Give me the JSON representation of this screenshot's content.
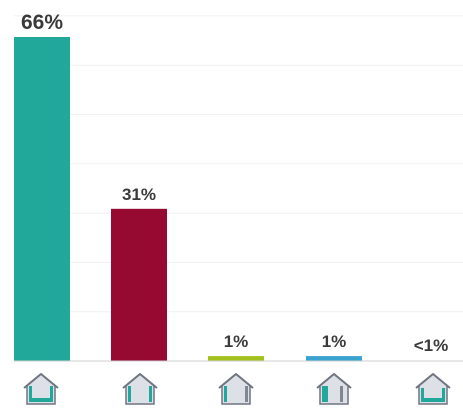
{
  "chart_data": {
    "type": "bar",
    "categories": [
      "",
      "",
      "",
      "",
      ""
    ],
    "values": [
      66,
      31,
      1,
      1,
      0.3
    ],
    "data_labels": [
      "66%",
      "31%",
      "1%",
      "1%",
      "<1%"
    ],
    "bar_colors": [
      "#22a89a",
      "#960a32",
      "#a3c11e",
      "#3aa2cf",
      "#22a89a"
    ],
    "category_icons": [
      "house-insulation-icon",
      "house-insulation-icon",
      "house-insulation-icon",
      "house-insulation-icon",
      "house-insulation-icon"
    ],
    "ylim": [
      0,
      66
    ],
    "grid": true,
    "title": "",
    "xlabel": "",
    "ylabel": ""
  }
}
